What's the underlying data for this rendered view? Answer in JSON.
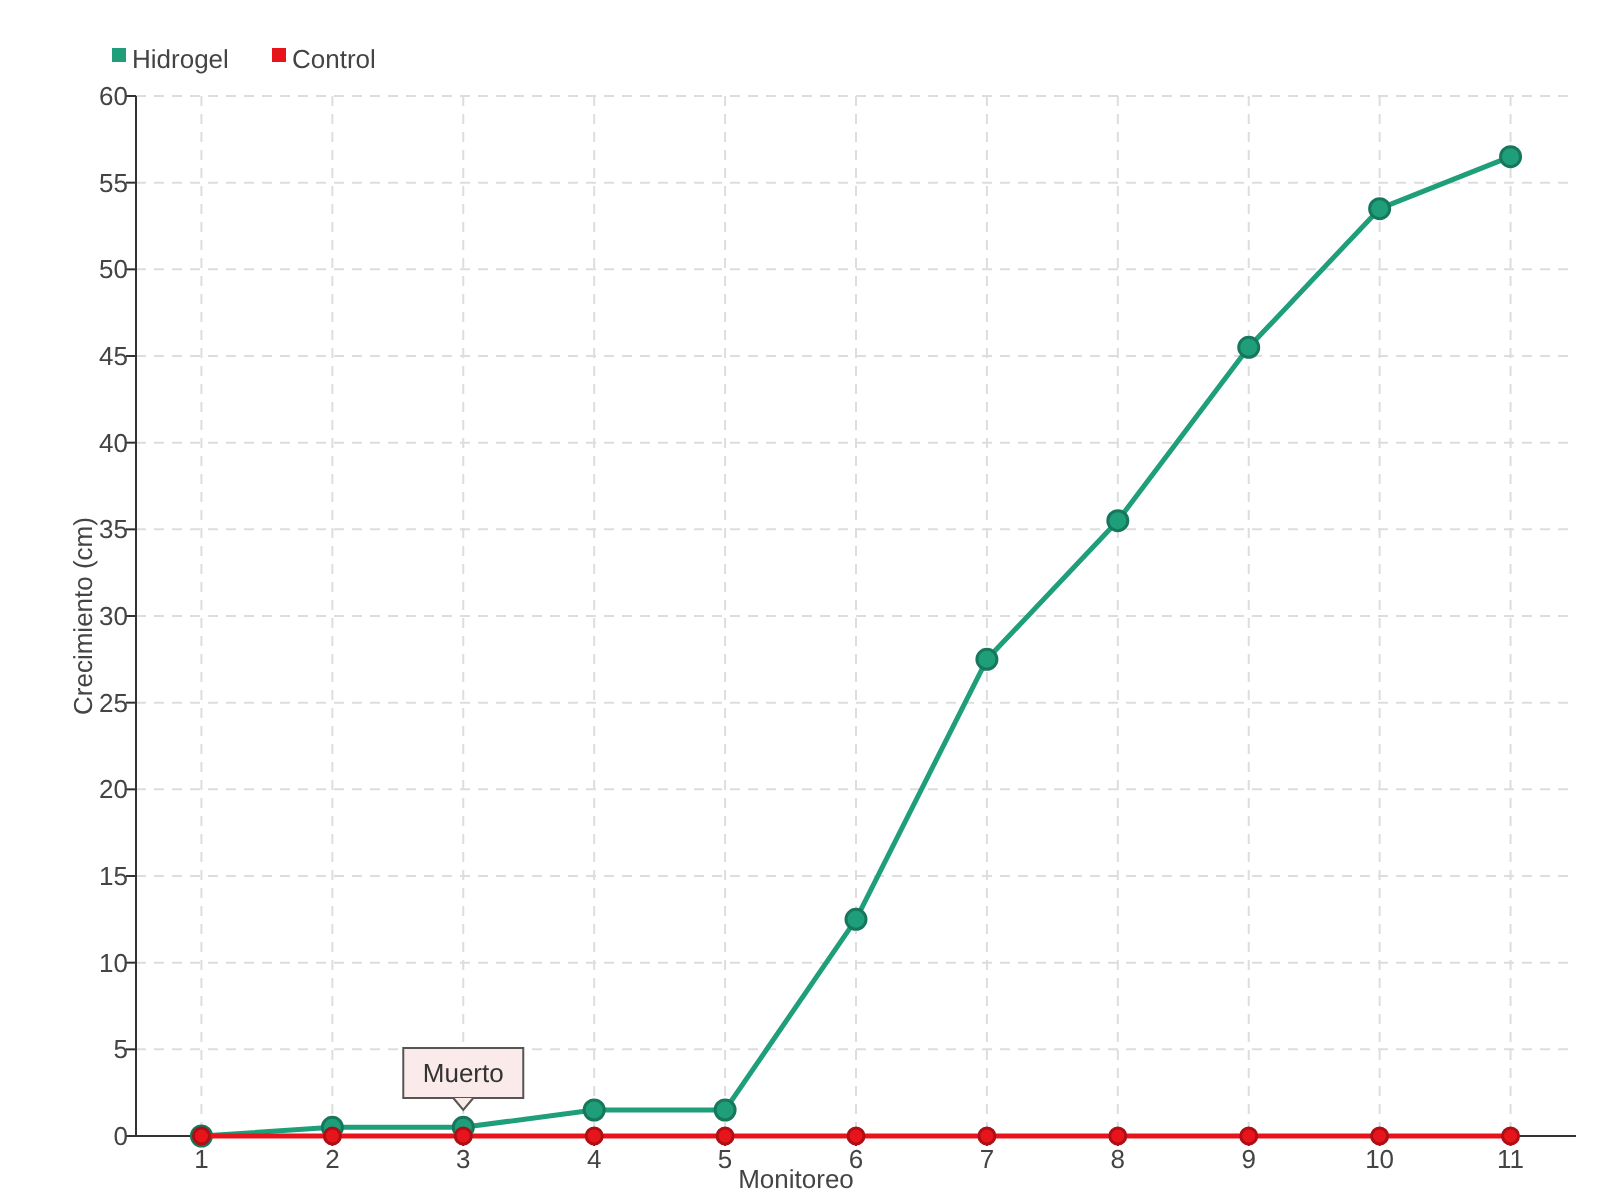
{
  "chart_data": {
    "type": "line",
    "xlabel": "Monitoreo",
    "ylabel": "Crecimiento (cm)",
    "categories": [
      "1",
      "2",
      "3",
      "4",
      "5",
      "6",
      "7",
      "8",
      "9",
      "10",
      "11"
    ],
    "series": [
      {
        "name": "Hidrogel",
        "color": "#1f9e7a",
        "values": [
          0,
          0.5,
          0.5,
          1.5,
          1.5,
          12.5,
          27.5,
          35.5,
          45.5,
          53.5,
          56.5
        ]
      },
      {
        "name": "Control",
        "color": "#e8141c",
        "values": [
          0,
          0,
          0,
          0,
          0,
          0,
          0,
          0,
          0,
          0,
          0
        ]
      }
    ],
    "ylim": [
      0,
      60
    ],
    "yticks": [
      0,
      5,
      10,
      15,
      20,
      25,
      30,
      35,
      40,
      45,
      50,
      55,
      60
    ],
    "grid": true,
    "legend": "top left",
    "marker": "circle",
    "line_style": "solid",
    "annotations": [
      {
        "text": "Muerto",
        "x": "3",
        "y": 0
      }
    ]
  }
}
